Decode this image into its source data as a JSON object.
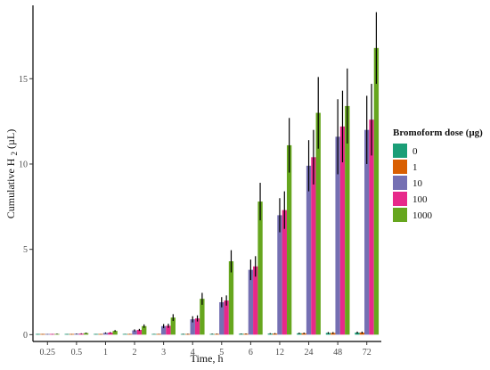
{
  "chart_data": {
    "type": "bar",
    "xlabel": "Time, h",
    "ylabel_main": "Cumulative H",
    "ylabel_sub": "2",
    "ylabel_unit": " (µL)",
    "categories": [
      "0.25",
      "0.5",
      "1",
      "2",
      "3",
      "4",
      "5",
      "6",
      "12",
      "24",
      "48",
      "72"
    ],
    "ylim": [
      -0.4,
      19.3
    ],
    "yticks": [
      0,
      5,
      10,
      15
    ],
    "grid": false,
    "legend": {
      "title": "Bromoform dose (µg)",
      "position": "right"
    },
    "series": [
      {
        "name": "0",
        "color": "#1b9e77",
        "values": [
          0.02,
          0.02,
          0.02,
          0.03,
          0.03,
          0.03,
          0.04,
          0.05,
          0.06,
          0.08,
          0.1,
          0.12
        ],
        "errors": [
          0.01,
          0.01,
          0.01,
          0.01,
          0.01,
          0.02,
          0.02,
          0.02,
          0.03,
          0.04,
          0.05,
          0.06
        ]
      },
      {
        "name": "1",
        "color": "#d95f02",
        "values": [
          0.02,
          0.02,
          0.02,
          0.03,
          0.03,
          0.03,
          0.04,
          0.05,
          0.06,
          0.08,
          0.1,
          0.12
        ],
        "errors": [
          0.01,
          0.01,
          0.01,
          0.01,
          0.01,
          0.02,
          0.02,
          0.02,
          0.03,
          0.04,
          0.05,
          0.06
        ]
      },
      {
        "name": "10",
        "color": "#7570b3",
        "values": [
          0.02,
          0.05,
          0.1,
          0.25,
          0.5,
          0.9,
          1.9,
          3.8,
          7.0,
          9.9,
          11.6,
          12.0
        ],
        "errors": [
          0.01,
          0.02,
          0.03,
          0.06,
          0.12,
          0.18,
          0.3,
          0.6,
          1.0,
          1.5,
          2.2,
          2.0
        ]
      },
      {
        "name": "100",
        "color": "#e7298a",
        "values": [
          0.02,
          0.06,
          0.12,
          0.28,
          0.52,
          0.95,
          2.0,
          4.0,
          7.3,
          10.4,
          12.2,
          12.6
        ],
        "errors": [
          0.01,
          0.02,
          0.03,
          0.06,
          0.12,
          0.18,
          0.3,
          0.6,
          1.1,
          1.6,
          2.1,
          2.1
        ]
      },
      {
        "name": "1000",
        "color": "#66a61e",
        "values": [
          0.04,
          0.09,
          0.22,
          0.5,
          1.0,
          2.1,
          4.3,
          7.8,
          11.1,
          13.0,
          13.4,
          16.8
        ],
        "errors": [
          0.02,
          0.03,
          0.05,
          0.1,
          0.2,
          0.35,
          0.65,
          1.1,
          1.6,
          2.1,
          2.2,
          2.1
        ]
      }
    ]
  }
}
